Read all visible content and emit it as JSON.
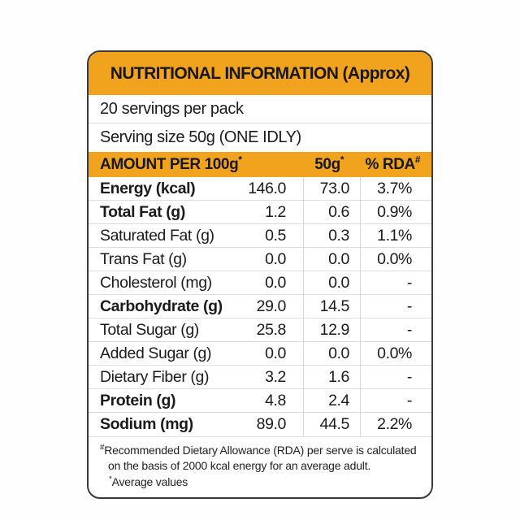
{
  "card": {
    "accent_color": "#F1A31E",
    "title": "NUTRITIONAL INFORMATION (Approx)",
    "servings_per_pack": "20 servings per pack",
    "serving_size": "Serving size 50g (ONE IDLY)"
  },
  "table": {
    "columns": {
      "amount_label": "AMOUNT PER 100g",
      "amount_sup": "*",
      "col50_label": "50g",
      "col50_sup": "*",
      "rda_label": "% RDA",
      "rda_sup": "#"
    },
    "rows": [
      {
        "name": "Energy (kcal)",
        "per_100g": "146.0",
        "per_50g": "73.0",
        "rda": "3.7%"
      },
      {
        "name": "Total Fat (g)",
        "per_100g": "1.2",
        "per_50g": "0.6",
        "rda": "0.9%"
      },
      {
        "name": "Saturated Fat (g)",
        "per_100g": "0.5",
        "per_50g": "0.3",
        "rda": "1.1%"
      },
      {
        "name": "Trans Fat (g)",
        "per_100g": "0.0",
        "per_50g": "0.0",
        "rda": "0.0%"
      },
      {
        "name": "Cholesterol (mg)",
        "per_100g": "0.0",
        "per_50g": "0.0",
        "rda": "-"
      },
      {
        "name": "Carbohydrate (g)",
        "per_100g": "29.0",
        "per_50g": "14.5",
        "rda": "-"
      },
      {
        "name": "Total Sugar (g)",
        "per_100g": "25.8",
        "per_50g": "12.9",
        "rda": "-"
      },
      {
        "name": "Added Sugar (g)",
        "per_100g": "0.0",
        "per_50g": "0.0",
        "rda": "0.0%"
      },
      {
        "name": "Dietary Fiber (g)",
        "per_100g": "3.2",
        "per_50g": "1.6",
        "rda": "-"
      },
      {
        "name": "Protein (g)",
        "per_100g": "4.8",
        "per_50g": "2.4",
        "rda": "-"
      },
      {
        "name": "Sodium (mg)",
        "per_100g": "89.0",
        "per_50g": "44.5",
        "rda": "2.2%"
      }
    ]
  },
  "footnotes": {
    "rda_sup": "#",
    "rda_note": "Recommended Dietary Allowance (RDA) per serve is calculated on the basis of 2000 kcal energy for an average adult.",
    "avg_sup": "*",
    "avg_note": "Average values"
  }
}
